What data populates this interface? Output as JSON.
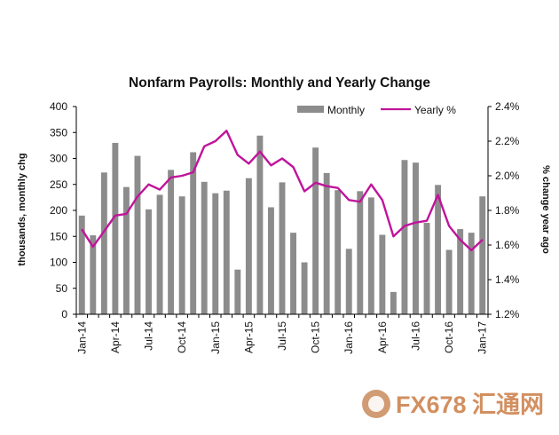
{
  "chart_data": {
    "type": "bar",
    "title": "Nonfarm Payrolls: Monthly and Yearly Change",
    "ylabel_left": "thousands, monthly chg",
    "ylabel_right": "% change year ago",
    "ylim_left": [
      0,
      400
    ],
    "ylim_right": [
      1.2,
      2.4
    ],
    "yticks_left": [
      "0",
      "50",
      "100",
      "150",
      "200",
      "250",
      "300",
      "350",
      "400"
    ],
    "yticks_right": [
      "1.2%",
      "1.4%",
      "1.6%",
      "1.8%",
      "2.0%",
      "2.2%",
      "2.4%"
    ],
    "xtick_labels": [
      "Jan-14",
      "Apr-14",
      "Jul-14",
      "Oct-14",
      "Jan-15",
      "Apr-15",
      "Jul-15",
      "Oct-15",
      "Jan-16",
      "Apr-16",
      "Jul-16",
      "Oct-16",
      "Jan-17"
    ],
    "legend": {
      "position": "top-right",
      "entries": [
        "Monthly",
        "Yearly %"
      ]
    },
    "categories": [
      "Jan-14",
      "Feb-14",
      "Mar-14",
      "Apr-14",
      "May-14",
      "Jun-14",
      "Jul-14",
      "Aug-14",
      "Sep-14",
      "Oct-14",
      "Nov-14",
      "Dec-14",
      "Jan-15",
      "Feb-15",
      "Mar-15",
      "Apr-15",
      "May-15",
      "Jun-15",
      "Jul-15",
      "Aug-15",
      "Sep-15",
      "Oct-15",
      "Nov-15",
      "Dec-15",
      "Jan-16",
      "Feb-16",
      "Mar-16",
      "Apr-16",
      "May-16",
      "Jun-16",
      "Jul-16",
      "Aug-16",
      "Sep-16",
      "Oct-16",
      "Nov-16",
      "Dec-16",
      "Jan-17"
    ],
    "series": [
      {
        "name": "Monthly",
        "type": "bar",
        "axis": "left",
        "color": "#8c8c8c",
        "values": [
          190,
          152,
          273,
          330,
          245,
          305,
          202,
          230,
          278,
          227,
          312,
          255,
          233,
          238,
          86,
          262,
          344,
          206,
          254,
          157,
          100,
          321,
          272,
          239,
          126,
          237,
          225,
          153,
          43,
          297,
          292,
          176,
          249,
          124,
          164,
          157,
          227
        ]
      },
      {
        "name": "Yearly %",
        "type": "line",
        "axis": "right",
        "color": "#c0149a",
        "values": [
          1.69,
          1.59,
          1.68,
          1.77,
          1.78,
          1.88,
          1.95,
          1.92,
          1.99,
          2.0,
          2.02,
          2.17,
          2.2,
          2.26,
          2.12,
          2.07,
          2.14,
          2.06,
          2.1,
          2.05,
          1.91,
          1.96,
          1.94,
          1.93,
          1.86,
          1.85,
          1.95,
          1.86,
          1.65,
          1.71,
          1.73,
          1.74,
          1.89,
          1.71,
          1.63,
          1.57,
          1.63
        ]
      }
    ]
  },
  "watermark": {
    "text": "FX678",
    "cjk": "汇通网"
  }
}
